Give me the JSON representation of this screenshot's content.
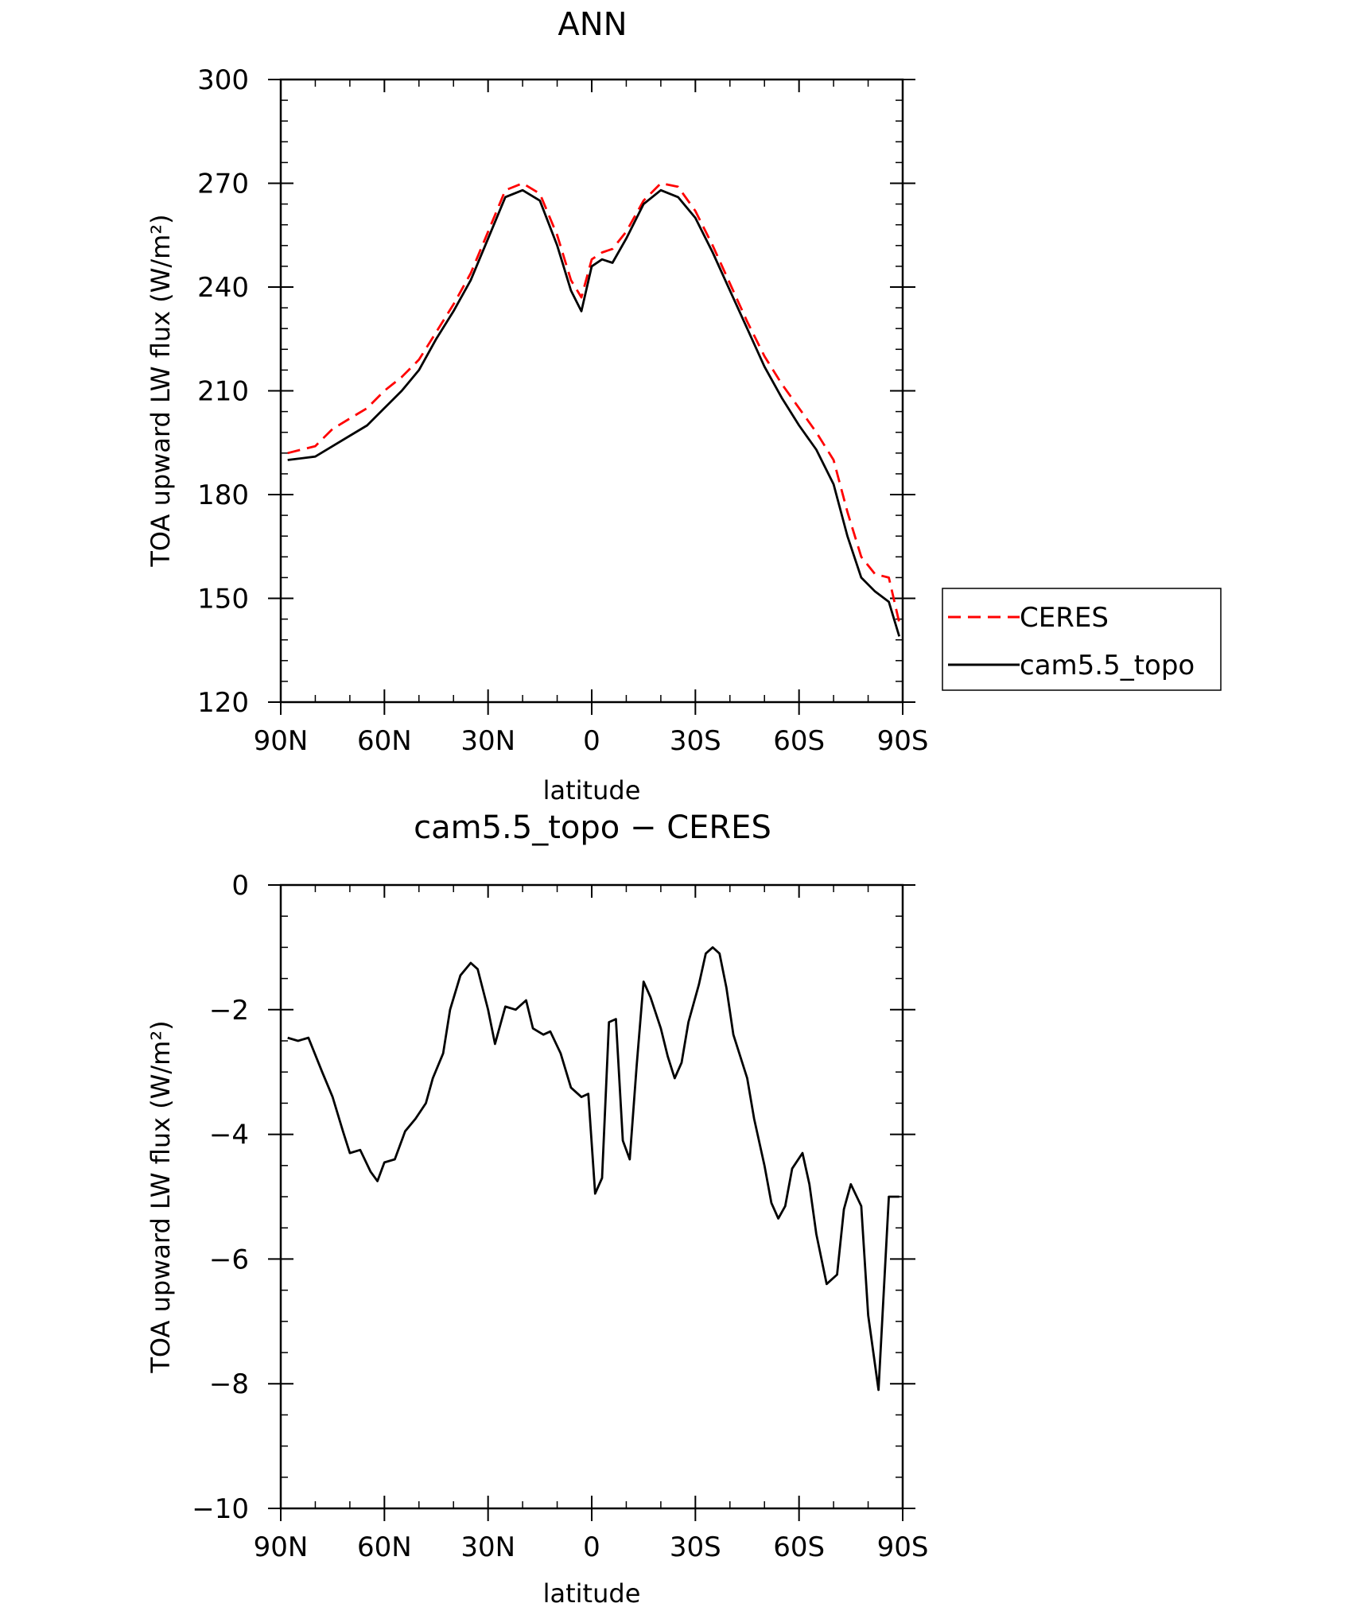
{
  "figure": {
    "top_title": "ANN",
    "bottom_title": "cam5.5_topo − CERES"
  },
  "chart_data": [
    {
      "type": "line",
      "title": "ANN",
      "xlabel": "latitude",
      "ylabel": "TOA upward LW flux (W/m²)",
      "xlim": [
        90,
        -90
      ],
      "ylim": [
        120,
        300
      ],
      "xticks": [
        90,
        60,
        30,
        0,
        -30,
        -60,
        -90
      ],
      "xtick_labels": [
        "90N",
        "60N",
        "30N",
        "0",
        "30S",
        "60S",
        "90S"
      ],
      "yticks": [
        120,
        150,
        180,
        210,
        240,
        270,
        300
      ],
      "ytick_labels": [
        "120",
        "150",
        "180",
        "210",
        "240",
        "270",
        "300"
      ],
      "legend_position": "right",
      "series": [
        {
          "name": "CERES",
          "color": "#ff0000",
          "dash": "dashed",
          "x": [
            88,
            80,
            75,
            70,
            65,
            60,
            55,
            50,
            45,
            40,
            35,
            30,
            25,
            20,
            15,
            10,
            6,
            3,
            0,
            -3,
            -6,
            -10,
            -15,
            -20,
            -25,
            -30,
            -35,
            -40,
            -45,
            -50,
            -55,
            -60,
            -65,
            -70,
            -74,
            -78,
            -82,
            -86,
            -89
          ],
          "values": [
            192,
            194,
            199,
            202,
            205,
            210,
            214,
            219,
            227,
            235,
            244,
            256,
            268,
            270,
            267,
            255,
            242,
            237,
            248,
            250,
            251,
            256,
            265,
            270,
            269,
            262,
            252,
            241,
            230,
            220,
            212,
            205,
            198,
            190,
            175,
            162,
            157,
            156,
            143
          ]
        },
        {
          "name": "cam5.5_topo",
          "color": "#000000",
          "dash": "solid",
          "x": [
            88,
            80,
            75,
            70,
            65,
            60,
            55,
            50,
            45,
            40,
            35,
            30,
            25,
            20,
            15,
            10,
            6,
            3,
            0,
            -3,
            -6,
            -10,
            -15,
            -20,
            -25,
            -30,
            -35,
            -40,
            -45,
            -50,
            -55,
            -60,
            -65,
            -70,
            -74,
            -78,
            -82,
            -86,
            -89
          ],
          "values": [
            190,
            191,
            194,
            197,
            200,
            205,
            210,
            216,
            225,
            233,
            242,
            254,
            266,
            268,
            265,
            252,
            239,
            233,
            246,
            248,
            247,
            254,
            264,
            268,
            266,
            260,
            250,
            239,
            228,
            217,
            208,
            200,
            193,
            183,
            168,
            156,
            152,
            149,
            139
          ]
        }
      ]
    },
    {
      "type": "line",
      "title": "cam5.5_topo − CERES",
      "xlabel": "latitude",
      "ylabel": "TOA upward LW flux (W/m²)",
      "xlim": [
        90,
        -90
      ],
      "ylim": [
        -10,
        0
      ],
      "xticks": [
        90,
        60,
        30,
        0,
        -30,
        -60,
        -90
      ],
      "xtick_labels": [
        "90N",
        "60N",
        "30N",
        "0",
        "30S",
        "60S",
        "90S"
      ],
      "yticks": [
        -10,
        -8,
        -6,
        -4,
        -2,
        0
      ],
      "ytick_labels": [
        "−10",
        "−8",
        "−6",
        "−4",
        "−2",
        "0"
      ],
      "series": [
        {
          "color": "#000000",
          "dash": "solid",
          "x": [
            88,
            85,
            82,
            78,
            75,
            72,
            70,
            67,
            64,
            62,
            60,
            57,
            54,
            51,
            48,
            46,
            43,
            41,
            38,
            35,
            33,
            30,
            28,
            25,
            22,
            19,
            17,
            14,
            12,
            9,
            6,
            3,
            1,
            -1,
            -3,
            -5,
            -7,
            -9,
            -11,
            -13,
            -15,
            -17,
            -20,
            -22,
            -24,
            -26,
            -28,
            -31,
            -33,
            -35,
            -37,
            -39,
            -41,
            -45,
            -47,
            -50,
            -52,
            -54,
            -56,
            -58,
            -61,
            -63,
            -65,
            -68,
            -71,
            -73,
            -75,
            -78,
            -80,
            -83,
            -86,
            -89
          ],
          "values": [
            -2.45,
            -2.5,
            -2.45,
            -3.0,
            -3.4,
            -3.95,
            -4.3,
            -4.25,
            -4.6,
            -4.75,
            -4.45,
            -4.4,
            -3.95,
            -3.75,
            -3.5,
            -3.1,
            -2.7,
            -2.0,
            -1.45,
            -1.25,
            -1.35,
            -2.0,
            -2.55,
            -1.95,
            -2.0,
            -1.85,
            -2.3,
            -2.4,
            -2.35,
            -2.7,
            -3.25,
            -3.4,
            -3.35,
            -4.95,
            -4.7,
            -2.2,
            -2.15,
            -4.1,
            -4.4,
            -2.9,
            -1.55,
            -1.8,
            -2.3,
            -2.75,
            -3.1,
            -2.85,
            -2.2,
            -1.6,
            -1.1,
            -1.0,
            -1.1,
            -1.65,
            -2.4,
            -3.1,
            -3.75,
            -4.5,
            -5.1,
            -5.35,
            -5.15,
            -4.55,
            -4.3,
            -4.8,
            -5.6,
            -6.4,
            -6.25,
            -5.2,
            -4.8,
            -5.15,
            -6.9,
            -8.1,
            -5.0,
            -5.0
          ]
        }
      ]
    }
  ]
}
